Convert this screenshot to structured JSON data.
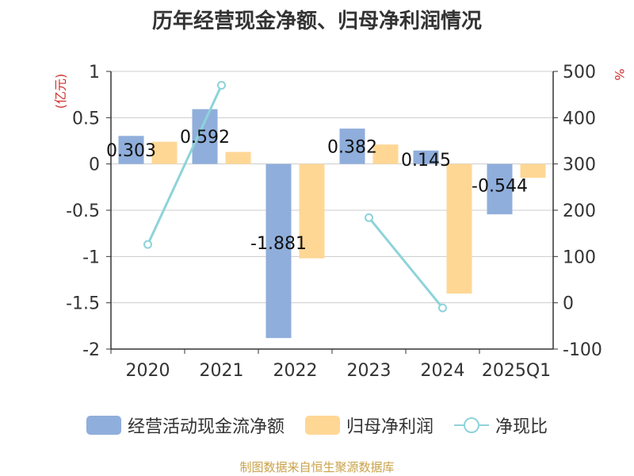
{
  "title": "历年经营现金净额、归母净利润情况",
  "source": "制图数据来自恒生聚源数据库",
  "chart_data": {
    "type": "bar",
    "categories": [
      "2020",
      "2021",
      "2022",
      "2023",
      "2024",
      "2025Q1"
    ],
    "y_left": {
      "unit": "(亿元)",
      "range": [
        -2,
        1
      ],
      "ticks": [
        "1",
        "0.5",
        "0",
        "-0.5",
        "-1",
        "-1.5",
        "-2"
      ]
    },
    "y_right": {
      "unit": "%",
      "range": [
        -100,
        500
      ],
      "ticks": [
        "500",
        "400",
        "300",
        "200",
        "100",
        "0",
        "-100"
      ]
    },
    "grid": true,
    "legend_position": "bottom",
    "series": [
      {
        "name": "经营活动现金流净额",
        "type": "bar",
        "axis": "left",
        "color": "#8faedb",
        "values": [
          0.303,
          0.592,
          -1.881,
          0.382,
          0.145,
          -0.544
        ],
        "labels": [
          "0.303",
          "0.592",
          "-1.881",
          "0.382",
          "0.145",
          "-0.544"
        ]
      },
      {
        "name": "归母净利润",
        "type": "bar",
        "axis": "left",
        "color": "#ffd795",
        "values": [
          0.24,
          0.13,
          -1.02,
          0.21,
          -1.4,
          -0.15
        ]
      },
      {
        "name": "净现比",
        "type": "line",
        "axis": "right",
        "color": "#8dd3d9",
        "values": [
          126,
          470,
          null,
          184,
          -11,
          null
        ]
      }
    ]
  }
}
